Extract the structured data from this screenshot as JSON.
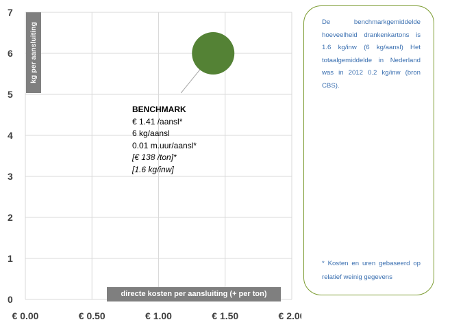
{
  "chart_data": {
    "type": "bubble",
    "x_ticks": [
      "€ 0.00",
      "€ 0.50",
      "€ 1.00",
      "€ 1.50",
      "€ 2.00"
    ],
    "y_ticks": [
      "0",
      "1",
      "2",
      "3",
      "4",
      "5",
      "6",
      "7"
    ],
    "xlim": [
      0,
      2
    ],
    "ylim": [
      0,
      7
    ],
    "xlabel": "directe kosten per aansluiting (+ per ton)",
    "ylabel": "kg per aansluiting",
    "grid": true,
    "points": [
      {
        "x": 1.41,
        "y": 6,
        "color": "#548235"
      }
    ],
    "annotation": {
      "title": "BENCHMARK",
      "lines": [
        "€ 1.41 /aansl*",
        "6 kg/aansl",
        "0.01 m.uur/aansl*"
      ],
      "italic_lines": [
        "[€ 138 /ton]*",
        "[1.6 kg/inw]"
      ]
    }
  },
  "note": {
    "text": "De benchmarkgemiddelde hoeveelheid drankenkartons is 1.6 kg/inw (6 kg/aansl) Het totaalgemiddelde in Nederland was in 2012 0.2 kg/inw (bron CBS).",
    "footnote": "* Kosten en uren gebaseerd op relatief weinig gegevens",
    "border_color": "#7a9a2e",
    "text_color": "#3a6fb0"
  }
}
